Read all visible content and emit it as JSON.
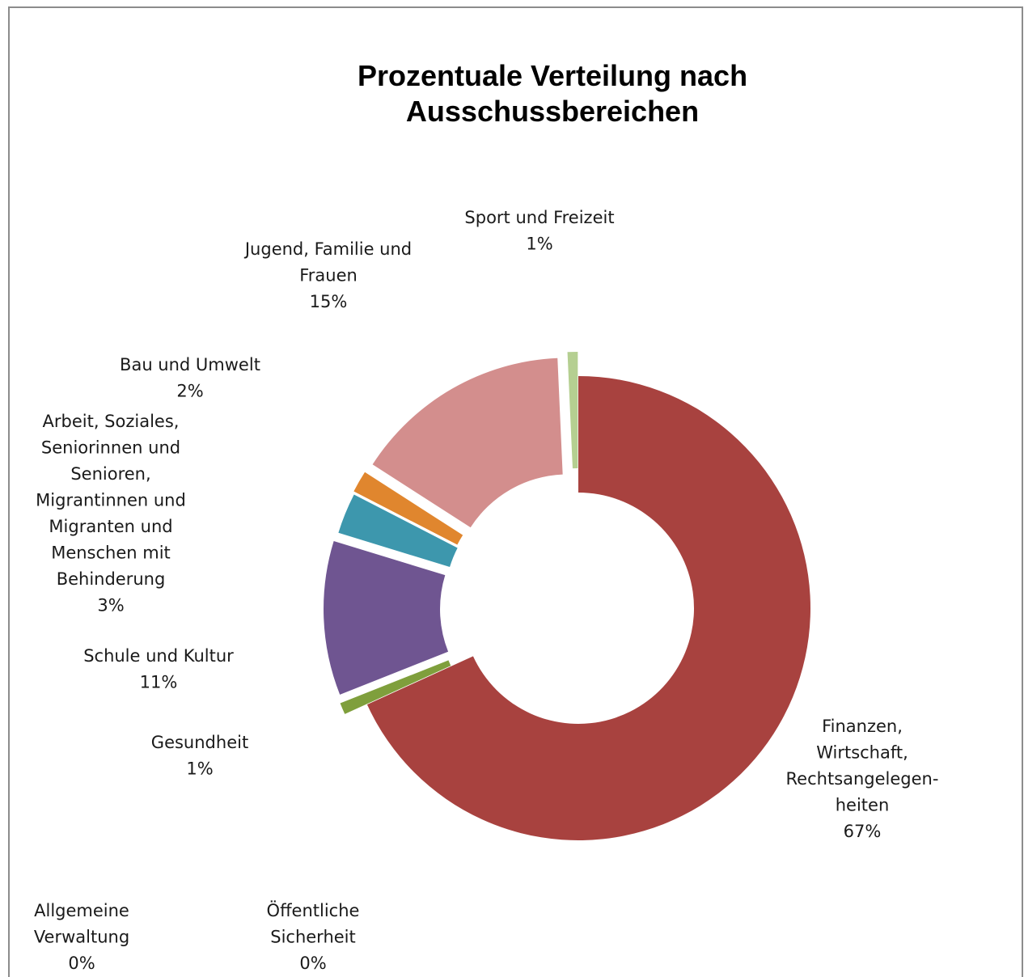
{
  "chart_data": {
    "type": "pie",
    "variant": "exploded-doughnut",
    "title": "Prozentuale Verteilung nach Ausschussbereichen",
    "title_lines": [
      "Prozentuale Verteilung nach",
      "Ausschussbereichen"
    ],
    "slices": [
      {
        "name": "Finanzen, Wirtschaft, Rechtsangelegenheiten",
        "label_lines": [
          "Finanzen,",
          "Wirtschaft,",
          "Rechtsangelegen-",
          "heiten"
        ],
        "percent_label": "67%",
        "value": 67.3,
        "color": "#a8423f"
      },
      {
        "name": "Gesundheit",
        "label_lines": [
          "Gesundheit"
        ],
        "percent_label": "1%",
        "value": 0.8,
        "color": "#7f9f3c"
      },
      {
        "name": "Schule und Kultur",
        "label_lines": [
          "Schule und Kultur"
        ],
        "percent_label": "11%",
        "value": 10.6,
        "color": "#6f5591"
      },
      {
        "name": "Arbeit, Soziales, Seniorinnen und Senioren, Migrantinnen und Migranten und Menschen mit Behinderung",
        "label_lines": [
          "Arbeit, Soziales,",
          "Seniorinnen und",
          "Senioren,",
          "Migrantinnen und",
          "Migranten und",
          "Menschen mit",
          "Behinderung"
        ],
        "percent_label": "3%",
        "value": 2.8,
        "color": "#3d97ad"
      },
      {
        "name": "Bau und Umwelt",
        "label_lines": [
          "Bau und Umwelt"
        ],
        "percent_label": "2%",
        "value": 1.5,
        "color": "#e0862e"
      },
      {
        "name": "Jugend, Familie und Frauen",
        "label_lines": [
          "Jugend, Familie und",
          "Frauen"
        ],
        "percent_label": "15%",
        "value": 15.0,
        "color": "#d38e8d"
      },
      {
        "name": "Sport und Freizeit",
        "label_lines": [
          "Sport und Freizeit"
        ],
        "percent_label": "1%",
        "value": 0.7,
        "color": "#b5cf91"
      },
      {
        "name": "Allgemeine Verwaltung",
        "label_lines": [
          "Allgemeine",
          "Verwaltung"
        ],
        "percent_label": "0%",
        "value": 0,
        "color": "#4f81bd"
      },
      {
        "name": "Öffentliche Sicherheit",
        "label_lines": [
          "Öffentliche",
          "Sicherheit"
        ],
        "percent_label": "0%",
        "value": 0,
        "color": "#c0504d"
      }
    ]
  }
}
